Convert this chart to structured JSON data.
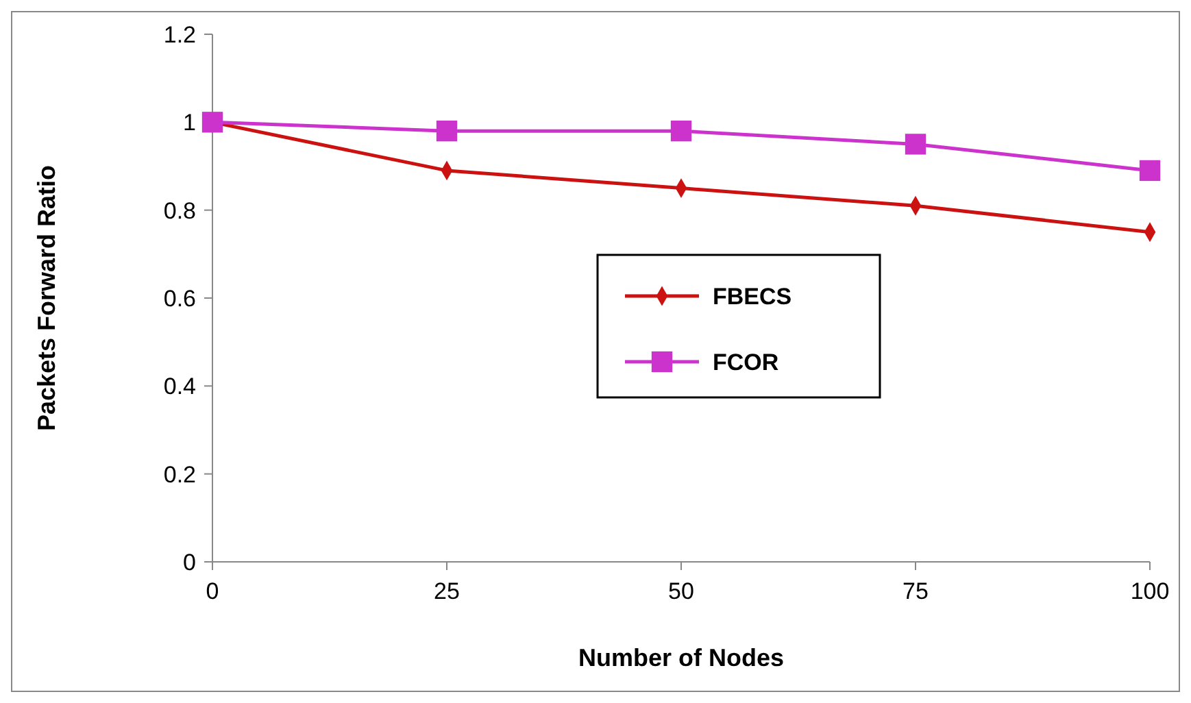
{
  "chart_data": {
    "type": "line",
    "xlabel": "Number of Nodes",
    "ylabel": "Packets Forward Ratio",
    "x": [
      0,
      25,
      50,
      75,
      100
    ],
    "series": [
      {
        "name": "FBECS",
        "color": "#cc1111",
        "marker": "diamond",
        "values": [
          1,
          0.89,
          0.85,
          0.81,
          0.75
        ]
      },
      {
        "name": "FCOR",
        "color": "#cc33cc",
        "marker": "square",
        "values": [
          1,
          0.98,
          0.98,
          0.95,
          0.89
        ]
      }
    ],
    "xlim": [
      0,
      100
    ],
    "xticks": [
      0,
      25,
      50,
      75,
      100
    ],
    "ylim": [
      0,
      1.2
    ],
    "yticks": [
      0,
      0.2,
      0.4,
      0.6,
      0.8,
      1,
      1.2
    ],
    "grid": false,
    "legend": "right"
  }
}
